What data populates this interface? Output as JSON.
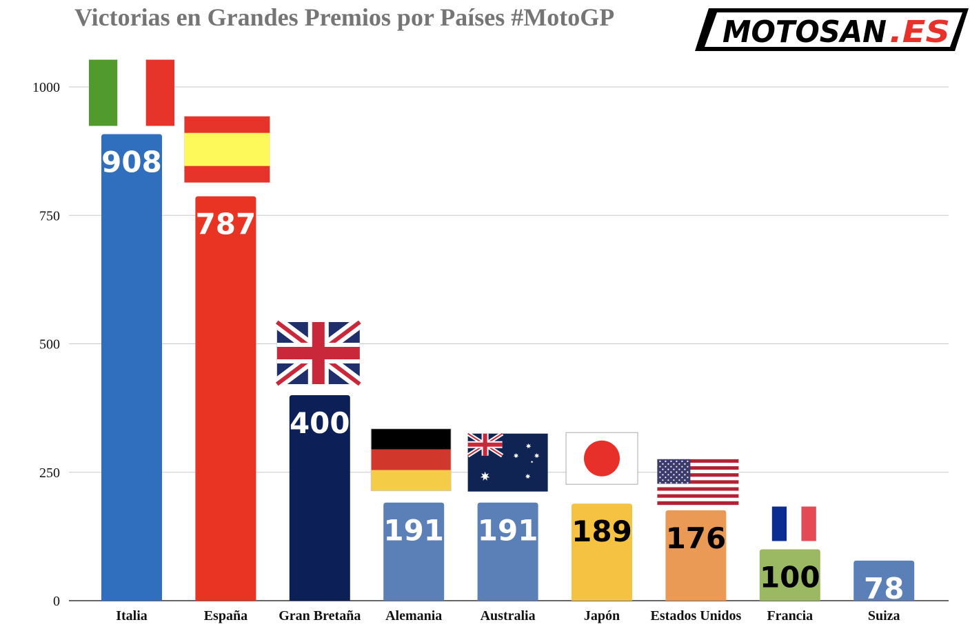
{
  "title": "Victorias en Grandes Premios por Países #MotoGP",
  "logo": {
    "text_main": "MOTOSAN",
    "text_suffix": ".ES",
    "icon": "motosan-logo"
  },
  "chart_data": {
    "type": "bar",
    "title": "Victorias en Grandes Premios por Países #MotoGP",
    "xlabel": "",
    "ylabel": "",
    "ylim": [
      0,
      1000
    ],
    "yticks": [
      "0",
      "250",
      "500",
      "750",
      "1000"
    ],
    "grid": true,
    "legend": "none",
    "categories": [
      "Italia",
      "España",
      "Gran Bretaña",
      "Alemania",
      "Australia",
      "Japón",
      "Estados Unidos",
      "Francia",
      "Suiza"
    ],
    "values": [
      908,
      787,
      400,
      191,
      191,
      189,
      176,
      100,
      78
    ],
    "data_labels": [
      "908",
      "787",
      "400",
      "191",
      "191",
      "189",
      "176",
      "100",
      "78"
    ],
    "bar_colors": [
      "#2f6fbe",
      "#e93423",
      "#0c2057",
      "#5b80b7",
      "#5b80b7",
      "#f5c242",
      "#eb9a55",
      "#9bb963",
      "#5b80b7"
    ],
    "label_colors": [
      "#ffffff",
      "#ffffff",
      "#ffffff",
      "#ffffff",
      "#ffffff",
      "#000000",
      "#000000",
      "#000000",
      "#ffffff"
    ],
    "flags": [
      "italy-flag-icon",
      "spain-flag-icon",
      "uk-flag-icon",
      "germany-flag-icon",
      "australia-flag-icon",
      "japan-flag-icon",
      "usa-flag-icon",
      "france-flag-icon",
      ""
    ]
  }
}
